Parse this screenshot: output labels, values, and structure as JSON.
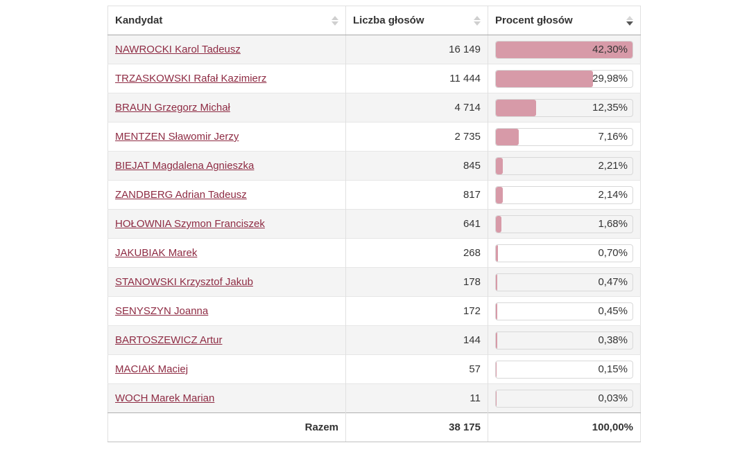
{
  "table": {
    "columns": [
      {
        "label": "Kandydat",
        "sort": "none"
      },
      {
        "label": "Liczba głosów",
        "sort": "none"
      },
      {
        "label": "Procent głosów",
        "sort": "desc"
      }
    ],
    "max_percent": 42.3,
    "rows": [
      {
        "name": "NAWROCKI Karol Tadeusz",
        "votes": "16 149",
        "percent": "42,30%",
        "percent_value": 42.3
      },
      {
        "name": "TRZASKOWSKI Rafał Kazimierz",
        "votes": "11 444",
        "percent": "29,98%",
        "percent_value": 29.98
      },
      {
        "name": "BRAUN Grzegorz Michał",
        "votes": "4 714",
        "percent": "12,35%",
        "percent_value": 12.35
      },
      {
        "name": "MENTZEN Sławomir Jerzy",
        "votes": "2 735",
        "percent": "7,16%",
        "percent_value": 7.16
      },
      {
        "name": "BIEJAT Magdalena Agnieszka",
        "votes": "845",
        "percent": "2,21%",
        "percent_value": 2.21
      },
      {
        "name": "ZANDBERG Adrian Tadeusz",
        "votes": "817",
        "percent": "2,14%",
        "percent_value": 2.14
      },
      {
        "name": "HOŁOWNIA Szymon Franciszek",
        "votes": "641",
        "percent": "1,68%",
        "percent_value": 1.68
      },
      {
        "name": "JAKUBIAK Marek",
        "votes": "268",
        "percent": "0,70%",
        "percent_value": 0.7
      },
      {
        "name": "STANOWSKI Krzysztof Jakub",
        "votes": "178",
        "percent": "0,47%",
        "percent_value": 0.47
      },
      {
        "name": "SENYSZYN Joanna",
        "votes": "172",
        "percent": "0,45%",
        "percent_value": 0.45
      },
      {
        "name": "BARTOSZEWICZ Artur",
        "votes": "144",
        "percent": "0,38%",
        "percent_value": 0.38
      },
      {
        "name": "MACIAK Maciej",
        "votes": "57",
        "percent": "0,15%",
        "percent_value": 0.15
      },
      {
        "name": "WOCH Marek Marian",
        "votes": "11",
        "percent": "0,03%",
        "percent_value": 0.03
      }
    ],
    "footer": {
      "label": "Razem",
      "votes": "38 175",
      "percent": "100,00%"
    }
  },
  "colors": {
    "link": "#8e2b43",
    "bar_fill": "#d79aa8",
    "stripe": "#f4f4f4",
    "sort_active": "#555555",
    "sort_inactive": "#cfcfcf"
  }
}
